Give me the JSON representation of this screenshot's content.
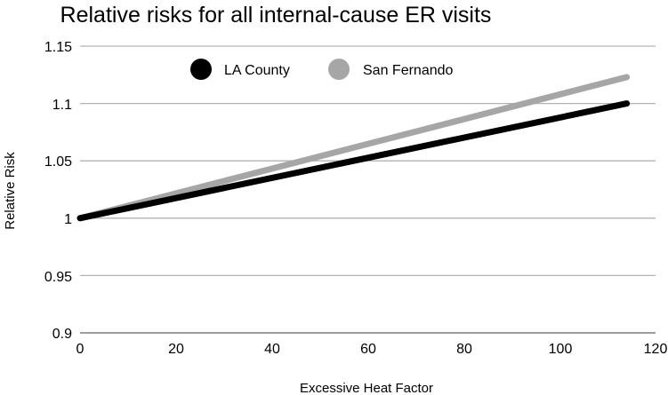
{
  "chart_data": {
    "type": "line",
    "title": "Relative risks for all internal-cause ER visits",
    "xlabel": "Excessive Heat Factor",
    "ylabel": "Relative Risk",
    "xlim": [
      0,
      120
    ],
    "ylim": [
      0.9,
      1.15
    ],
    "x_ticks": [
      "0",
      "20",
      "40",
      "60",
      "80",
      "100",
      "120"
    ],
    "y_ticks": [
      "1.15",
      "1.1",
      "1.05",
      "1",
      "0.95",
      "0.9"
    ],
    "grid": true,
    "legend_position": "top-left",
    "series": [
      {
        "name": "LA County",
        "color": "#000000",
        "x": [
          0,
          114
        ],
        "values": [
          1.0,
          1.1
        ]
      },
      {
        "name": "San Fernando",
        "color": "#a6a6a6",
        "x": [
          0,
          114
        ],
        "values": [
          1.0,
          1.123
        ]
      }
    ]
  }
}
